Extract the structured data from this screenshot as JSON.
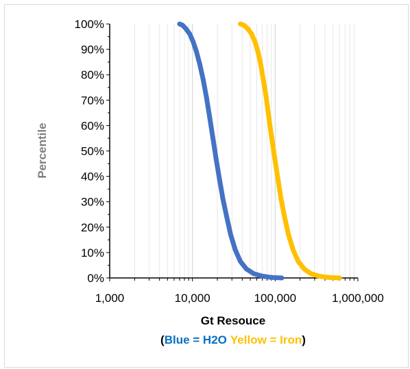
{
  "chart_data": {
    "type": "scatter",
    "title": "",
    "xlabel": "Gt Resouce",
    "ylabel": "Percentile",
    "x_scale": "log",
    "xlim": [
      1000,
      1000000
    ],
    "ylim": [
      0,
      100
    ],
    "x_ticks": [
      "1,000",
      "10,000",
      "100,000",
      "1,000,000"
    ],
    "y_ticks": [
      "0%",
      "10%",
      "20%",
      "30%",
      "40%",
      "50%",
      "60%",
      "70%",
      "80%",
      "90%",
      "100%"
    ],
    "grid": "vertical minor and major lines on x",
    "legend_note": {
      "open": "(",
      "blue": "Blue = H2O",
      "yellow": "Yellow = Iron",
      "close": ")"
    },
    "series": [
      {
        "color": "#4472c4",
        "x": [
          7000,
          7600,
          8400,
          9300,
          10200,
          11200,
          12300,
          13500,
          14800,
          16200,
          17700,
          19300,
          21200,
          23400,
          26000,
          29000,
          33000,
          38000,
          45000,
          55000,
          70000,
          90000,
          120000
        ],
        "y": [
          100,
          99.5,
          98,
          96,
          93,
          89,
          84,
          78,
          71,
          63,
          55,
          47,
          39,
          31,
          24,
          17,
          11,
          6.5,
          3.5,
          1.7,
          0.7,
          0.2,
          0
        ]
      },
      {
        "color": "#ffc000",
        "x": [
          38000,
          42000,
          47000,
          52000,
          57000,
          62000,
          67000,
          72000,
          78000,
          84000,
          91000,
          99000,
          108000,
          118000,
          130000,
          145000,
          165000,
          190000,
          225000,
          270000,
          340000,
          440000,
          600000
        ],
        "y": [
          100,
          99.5,
          98,
          96,
          93,
          89,
          84,
          78,
          71,
          63,
          55,
          47,
          39,
          31,
          24,
          17,
          11,
          6.5,
          3.5,
          1.7,
          0.7,
          0.2,
          0
        ]
      }
    ]
  }
}
